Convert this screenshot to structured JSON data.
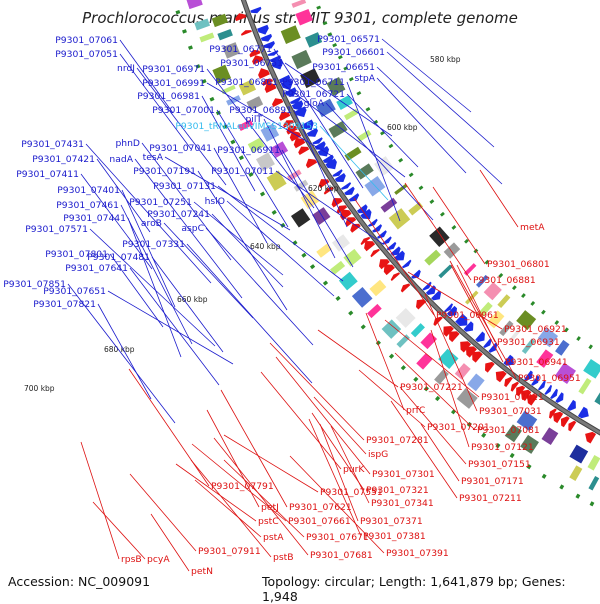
{
  "title": "Prochlorococcus marinus str. MIT 9301, complete genome",
  "accession_text": "Accession: NC_009091",
  "summary_text": "Topology: circular; Length: 1,641,879 bp; Genes: 1,948",
  "colors": {
    "forward_gene": "#1a2ee6",
    "reverse_gene": "#e81414",
    "forward_label": "#1a1acc",
    "reverse_label": "#dd1111",
    "rna_label": "#33bbee",
    "backbone": "#7a7a7a",
    "tick": "#2a8a2a"
  },
  "ticks": [
    {
      "label": "580 kbp"
    },
    {
      "label": "600 kbp"
    },
    {
      "label": "620 kbp"
    },
    {
      "label": "640 kbp"
    },
    {
      "label": "660 kbp"
    },
    {
      "label": "680 kbp"
    },
    {
      "label": "700 kbp"
    }
  ],
  "forward_labels": [
    {
      "text": "P9301_07061"
    },
    {
      "text": "P9301_07051"
    },
    {
      "text": "nrdJ"
    },
    {
      "text": "P9301_06971"
    },
    {
      "text": "P9301_06991"
    },
    {
      "text": "P9301_06981"
    },
    {
      "text": "P9301_07001"
    },
    {
      "text": "P9301_06771"
    },
    {
      "text": "P9301_06751"
    },
    {
      "text": "P9301_06861"
    },
    {
      "text": "P9301_06891"
    },
    {
      "text": "pilT"
    },
    {
      "text": "P9301_06571"
    },
    {
      "text": "P9301_06601"
    },
    {
      "text": "P9301_06651"
    },
    {
      "text": "P9301_06711"
    },
    {
      "text": "P9301_06721"
    },
    {
      "text": "stpA"
    },
    {
      "text": "gloA"
    },
    {
      "text": "P9301_07431"
    },
    {
      "text": "P9301_07421"
    },
    {
      "text": "P9301_07411"
    },
    {
      "text": "phnD"
    },
    {
      "text": "nadA"
    },
    {
      "text": "tesA"
    },
    {
      "text": "P9301_07041"
    },
    {
      "text": "P9301_06911"
    },
    {
      "text": "P9301_07191"
    },
    {
      "text": "P9301_07011"
    },
    {
      "text": "P9301_07131"
    },
    {
      "text": "P9301_07401"
    },
    {
      "text": "P9301_07461"
    },
    {
      "text": "P9301_07251"
    },
    {
      "text": "hslO"
    },
    {
      "text": "P9301_07571"
    },
    {
      "text": "P9301_07441"
    },
    {
      "text": "P9301_07241"
    },
    {
      "text": "aroB"
    },
    {
      "text": "aspC"
    },
    {
      "text": "P9301_07331"
    },
    {
      "text": "P9301_07801"
    },
    {
      "text": "P9301_07481"
    },
    {
      "text": "P9301_07641"
    },
    {
      "text": "P9301_07851"
    },
    {
      "text": "P9301_07651"
    },
    {
      "text": "P9301_07821"
    }
  ],
  "rna_label": {
    "text": "P9301_tRNALeuVIMSS1309153"
  },
  "reverse_labels": [
    {
      "text": "metA"
    },
    {
      "text": "P9301_06801"
    },
    {
      "text": "P9301_06881"
    },
    {
      "text": "P9301_06961"
    },
    {
      "text": "P9301_06921"
    },
    {
      "text": "P9301_06931"
    },
    {
      "text": "P9301_06941"
    },
    {
      "text": "P9301_06951"
    },
    {
      "text": "P9301_07221"
    },
    {
      "text": "P9301_07021"
    },
    {
      "text": "prfC"
    },
    {
      "text": "P9301_07031"
    },
    {
      "text": "P9301_07201"
    },
    {
      "text": "P9301_07081"
    },
    {
      "text": "P9301_07281"
    },
    {
      "text": "P9301_07121"
    },
    {
      "text": "ispG"
    },
    {
      "text": "P9301_07151"
    },
    {
      "text": "purK"
    },
    {
      "text": "P9301_07301"
    },
    {
      "text": "P9301_07171"
    },
    {
      "text": "P9301_07321"
    },
    {
      "text": "P9301_07211"
    },
    {
      "text": "P9301_07791"
    },
    {
      "text": "P9301_07551"
    },
    {
      "text": "P9301_07341"
    },
    {
      "text": "petJ"
    },
    {
      "text": "P9301_07621"
    },
    {
      "text": "pstC"
    },
    {
      "text": "P9301_07661"
    },
    {
      "text": "P9301_07371"
    },
    {
      "text": "P9301_07381"
    },
    {
      "text": "pstA"
    },
    {
      "text": "P9301_07671"
    },
    {
      "text": "P9301_07391"
    },
    {
      "text": "rpsB"
    },
    {
      "text": "pcyA"
    },
    {
      "text": "P9301_07911"
    },
    {
      "text": "pstB"
    },
    {
      "text": "P9301_07681"
    },
    {
      "text": "petN"
    }
  ]
}
